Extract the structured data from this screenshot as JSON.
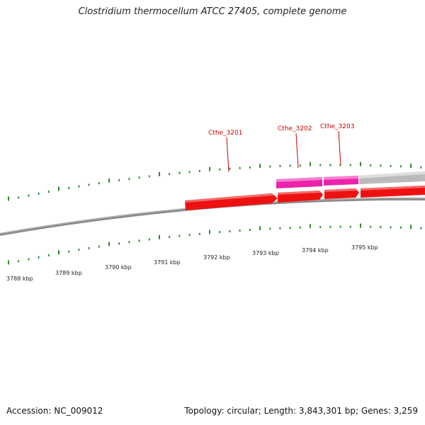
{
  "title": "Clostridium thermocellum ATCC 27405, complete genome",
  "footer": {
    "accession": "Accession: NC_009012",
    "stats": "Topology: circular; Length: 3,843,301 bp; Genes: 3,259"
  },
  "colors": {
    "backbone": "#8a8a8a",
    "forward_gene": "#ee1111",
    "reverse_gene": "#ee22aa",
    "other_gene": "#bbbbbb",
    "ticks": "#2e8b2e",
    "gene_label": "#cc0000"
  },
  "scale_labels": [
    "3788 kbp",
    "3789 kbp",
    "3790 kbp",
    "3791 kbp",
    "3792 kbp",
    "3793 kbp",
    "3794 kbp",
    "3795 kbp"
  ],
  "gene_labels": [
    "Cthe_3201",
    "Cthe_3202",
    "Cthe_3203"
  ]
}
